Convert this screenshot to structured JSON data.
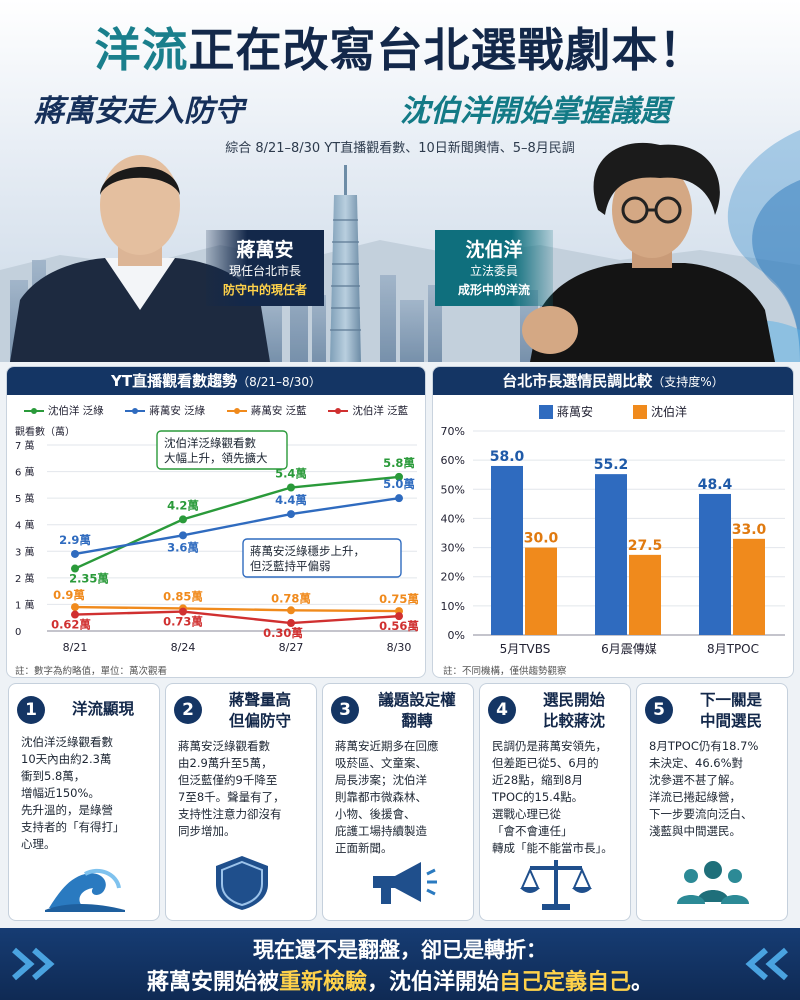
{
  "header": {
    "title_hl": "洋流",
    "title_rest": "正在改寫台北選戰劇本！",
    "sub_left": "蔣萬安走入防守",
    "sub_right": "沈伯洋開始掌握議題",
    "note": "綜合 8/21–8/30 YT直播觀看數、10日新聞輿情、5–8月民調"
  },
  "candidates": {
    "left": {
      "name": "蔣萬安",
      "line1": "現任台北市長",
      "line2": "防守中的現任者"
    },
    "right": {
      "name": "沈伯洋",
      "line1": "立法委員",
      "line2": "成形中的洋流"
    }
  },
  "colors": {
    "navy": "#143564",
    "green": "#2a9a3a",
    "blue": "#2f6bbf",
    "orange": "#f08a1c",
    "red": "#d03030",
    "bar_blue": "#2f6bbf",
    "bar_orange": "#f08a1c"
  },
  "line_chart": {
    "title": "YT直播觀看數趨勢",
    "title_range": "（8/21–8/30）",
    "ylabel": "觀看數（萬）",
    "yticks": [
      "0",
      "1 萬",
      "2 萬",
      "3 萬",
      "4 萬",
      "5 萬",
      "6 萬",
      "7 萬"
    ],
    "footnote": "註：數字為約略值，單位：萬次觀看",
    "callout_green": [
      "沈伯洋泛綠觀看數",
      "大幅上升，領先擴大"
    ],
    "callout_blue": [
      "蔣萬安泛綠穩步上升，",
      "但泛藍持平偏弱"
    ]
  },
  "chart_data": [
    {
      "type": "line",
      "x": [
        "8/21",
        "8/24",
        "8/27",
        "8/30"
      ],
      "ylim": [
        0,
        7
      ],
      "series": [
        {
          "name": "沈伯洋 泛綠",
          "color": "#2a9a3a",
          "values": [
            2.35,
            4.2,
            5.4,
            5.8
          ],
          "labels": [
            "2.35萬",
            "4.2萬",
            "5.4萬",
            "5.8萬"
          ]
        },
        {
          "name": "蔣萬安 泛綠",
          "color": "#2f6bbf",
          "values": [
            2.9,
            3.6,
            4.4,
            5.0
          ],
          "labels": [
            "2.9萬",
            "3.6萬",
            "4.4萬",
            "5.0萬"
          ]
        },
        {
          "name": "蔣萬安 泛藍",
          "color": "#f08a1c",
          "values": [
            0.9,
            0.85,
            0.78,
            0.75
          ],
          "labels": [
            "0.9萬",
            "0.85萬",
            "0.78萬",
            "0.75萬"
          ]
        },
        {
          "name": "沈伯洋 泛藍",
          "color": "#d03030",
          "values": [
            0.62,
            0.73,
            0.3,
            0.56
          ],
          "labels": [
            "0.62萬",
            "0.73萬",
            "0.30萬",
            "0.56萬"
          ]
        }
      ]
    },
    {
      "type": "bar",
      "title": "台北市長選情民調比較",
      "title_suffix": "（支持度%）",
      "categories": [
        "5月TVBS",
        "6月震傳媒",
        "8月TPOC"
      ],
      "ylim": [
        0,
        70
      ],
      "yticks": [
        "0%",
        "10%",
        "20%",
        "30%",
        "40%",
        "50%",
        "60%",
        "70%"
      ],
      "series": [
        {
          "name": "蔣萬安",
          "color": "#2f6bbf",
          "values": [
            58.0,
            55.2,
            48.4
          ],
          "labels": [
            "58.0",
            "55.2",
            "48.4"
          ]
        },
        {
          "name": "沈伯洋",
          "color": "#f08a1c",
          "values": [
            30.0,
            27.5,
            33.0
          ],
          "labels": [
            "30.0",
            "27.5",
            "33.0"
          ]
        }
      ],
      "footnote": "註：不同機構，僅供趨勢觀察"
    }
  ],
  "cards": [
    {
      "num": "1",
      "title": "洋流顯現",
      "body": [
        "沈伯洋泛綠觀看數",
        "10天內由約2.3萬",
        "衝到5.8萬，",
        "增幅近150%。",
        "先升溫的，是綠營",
        "支持者的「有得打」",
        "心理。"
      ],
      "icon": "wave-icon"
    },
    {
      "num": "2",
      "title": "蔣聲量高\n但偏防守",
      "body": [
        "蔣萬安泛綠觀看數",
        "由2.9萬升至5萬，",
        "但泛藍僅約9千降至",
        "7至8千。聲量有了，",
        "支持性注意力卻沒有",
        "同步增加。"
      ],
      "icon": "shield-icon"
    },
    {
      "num": "3",
      "title": "議題設定權\n翻轉",
      "body": [
        "蔣萬安近期多在回應",
        "吸菸區、文童案、",
        "局長涉案；沈伯洋",
        "則靠都市微森林、",
        "小物、後援會、",
        "庇護工場持續製造",
        "正面新聞。"
      ],
      "icon": "megaphone-icon"
    },
    {
      "num": "4",
      "title": "選民開始\n比較蔣沈",
      "body": [
        "民調仍是蔣萬安領先，",
        "但差距已從5、6月的",
        "近28點，縮到8月",
        "TPOC的15.4點。",
        "選戰心理已從",
        "「會不會連任」",
        "轉成「能不能當市長」。"
      ],
      "icon": "scale-icon"
    },
    {
      "num": "5",
      "title": "下一關是\n中間選民",
      "body": [
        "8月TPOC仍有18.7%",
        "未決定、46.6%對",
        "沈參選不甚了解。",
        "洋流已捲起綠營，",
        "下一步要流向泛白、",
        "淺藍與中間選民。"
      ],
      "icon": "people-icon"
    }
  ],
  "footer": {
    "line1": "現在還不是翻盤，卻已是轉折：",
    "l2_a": "蔣萬安開始被",
    "l2_b": "重新檢驗",
    "l2_c": "，沈伯洋開始",
    "l2_d": "自己定義自己",
    "l2_e": "。"
  }
}
